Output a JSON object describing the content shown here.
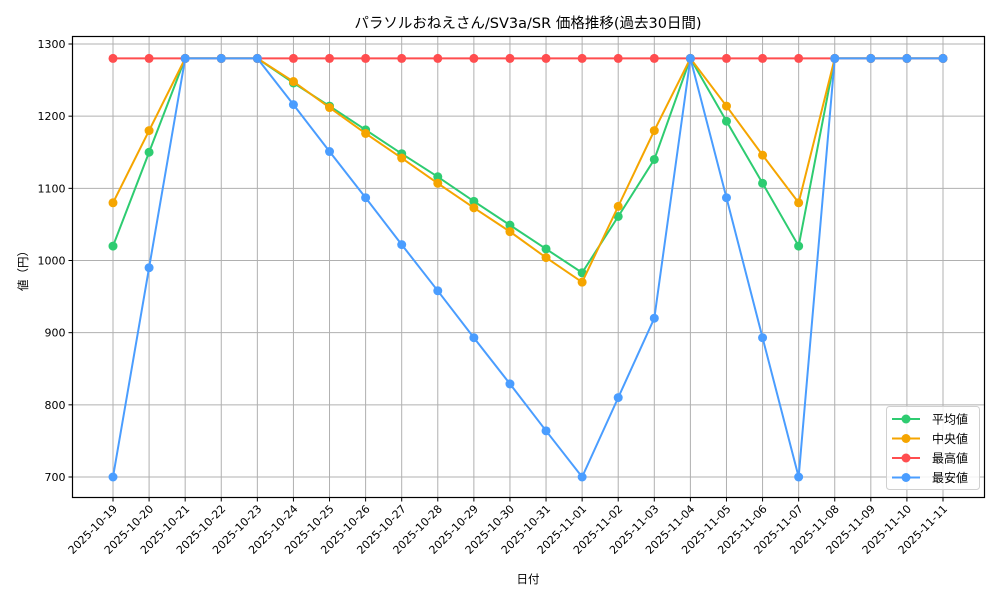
{
  "chart_data": {
    "type": "line",
    "title": "パラソルおねえさん/SV3a/SR 価格推移(過去30日間)",
    "xlabel": "日付",
    "ylabel": "値（円）",
    "ylim": [
      670,
      1310
    ],
    "yticks": [
      700,
      800,
      900,
      1000,
      1100,
      1200,
      1300
    ],
    "grid": true,
    "legend_position": "lower right",
    "x": [
      "2025-10-19",
      "2025-10-20",
      "2025-10-21",
      "2025-10-22",
      "2025-10-23",
      "2025-10-24",
      "2025-10-25",
      "2025-10-26",
      "2025-10-27",
      "2025-10-28",
      "2025-10-29",
      "2025-10-30",
      "2025-10-31",
      "2025-11-01",
      "2025-11-02",
      "2025-11-03",
      "2025-11-04",
      "2025-11-05",
      "2025-11-06",
      "2025-11-07",
      "2025-11-08",
      "2025-11-09",
      "2025-11-10",
      "2025-11-11"
    ],
    "series": [
      {
        "name": "平均値",
        "color": "#2ecc71",
        "values": [
          1020,
          1150,
          1280,
          1280,
          1280,
          1246,
          1214,
          1181,
          1148,
          1116,
          1082,
          1049,
          1016,
          983,
          1061,
          1140,
          1280,
          1193,
          1107,
          1020,
          1280,
          1280,
          1280,
          1280
        ]
      },
      {
        "name": "中央値",
        "color": "#f5a500",
        "values": [
          1080,
          1180,
          1280,
          1280,
          1280,
          1248,
          1212,
          1176,
          1142,
          1107,
          1073,
          1040,
          1004,
          970,
          1075,
          1180,
          1280,
          1214,
          1146,
          1080,
          1280,
          1280,
          1280,
          1280
        ]
      },
      {
        "name": "最高値",
        "color": "#ff4d4f",
        "values": [
          1280,
          1280,
          1280,
          1280,
          1280,
          1280,
          1280,
          1280,
          1280,
          1280,
          1280,
          1280,
          1280,
          1280,
          1280,
          1280,
          1280,
          1280,
          1280,
          1280,
          1280,
          1280,
          1280,
          1280
        ]
      },
      {
        "name": "最安値",
        "color": "#4a9dff",
        "values": [
          700,
          990,
          1280,
          1280,
          1280,
          1216,
          1151,
          1087,
          1022,
          958,
          893,
          829,
          764,
          700,
          810,
          920,
          1280,
          1087,
          893,
          700,
          1280,
          1280,
          1280,
          1280
        ]
      }
    ]
  }
}
